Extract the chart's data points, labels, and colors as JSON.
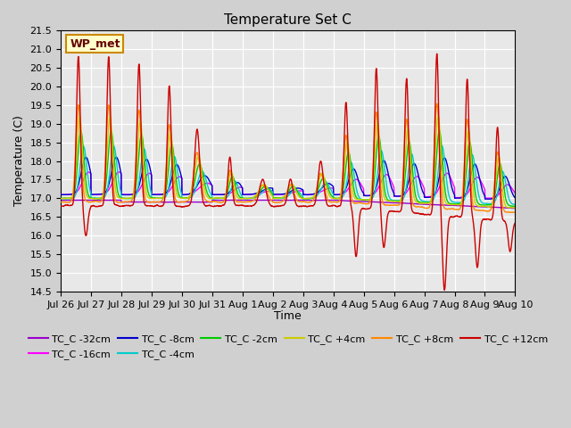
{
  "title": "Temperature Set C",
  "xlabel": "Time",
  "ylabel": "Temperature (C)",
  "ylim": [
    14.5,
    21.5
  ],
  "xlim": [
    0,
    360
  ],
  "fig_bg": "#d0d0d0",
  "plot_bg": "#e8e8e8",
  "annotation_label": "WP_met",
  "annotation_bg": "#ffffcc",
  "annotation_border": "#cc8800",
  "series_colors": {
    "TC_C -32cm": "#9900cc",
    "TC_C -16cm": "#ff00ff",
    "TC_C -8cm": "#0000cc",
    "TC_C -4cm": "#00cccc",
    "TC_C -2cm": "#00cc00",
    "TC_C +4cm": "#cccc00",
    "TC_C +8cm": "#ff8800",
    "TC_C +12cm": "#cc0000"
  },
  "x_tick_labels": [
    "Jul 26",
    "Jul 27",
    "Jul 28",
    "Jul 29",
    "Jul 30",
    "Jul 31",
    "Aug 1",
    "Aug 2",
    "Aug 3",
    "Aug 4",
    "Aug 5",
    "Aug 6",
    "Aug 7",
    "Aug 8",
    "Aug 9",
    "Aug 10"
  ],
  "x_tick_positions": [
    0,
    24,
    48,
    72,
    96,
    120,
    144,
    168,
    192,
    216,
    240,
    264,
    288,
    312,
    336,
    360
  ]
}
